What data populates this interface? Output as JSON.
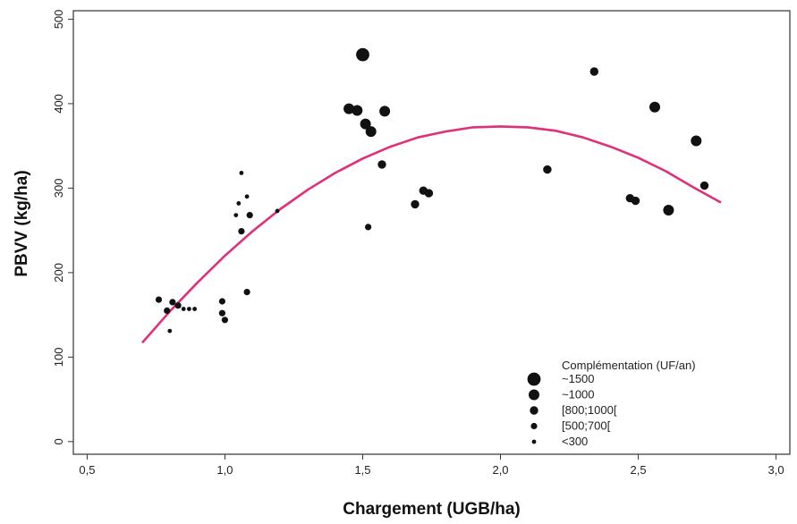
{
  "chart_data": {
    "type": "scatter",
    "xlabel": "Chargement (UGB/ha)",
    "ylabel": "PBVV (kg/ha)",
    "xlim": [
      0.45,
      3.05
    ],
    "ylim": [
      -15,
      510
    ],
    "x_ticks": [
      0.5,
      1.0,
      1.5,
      2.0,
      2.5,
      3.0
    ],
    "x_tick_labels": [
      "0,5",
      "1,0",
      "1,5",
      "2,0",
      "2,5",
      "3,0"
    ],
    "y_ticks": [
      0,
      100,
      200,
      300,
      400,
      500
    ],
    "y_tick_labels": [
      "0",
      "100",
      "200",
      "300",
      "400",
      "500"
    ],
    "grid": false,
    "colors": {
      "points": "#111111",
      "curve": "#e0307a",
      "axis": "#333333"
    },
    "legend": {
      "title": "Complémentation (UF/an)",
      "placement": "bottom-right",
      "entries": [
        {
          "label": "~1500",
          "size_class": 5
        },
        {
          "label": "~1000",
          "size_class": 4
        },
        {
          "label": "[800;1000[",
          "size_class": 3
        },
        {
          "label": "[500;700[",
          "size_class": 2
        },
        {
          "label": "<300",
          "size_class": 1
        }
      ]
    },
    "points": [
      {
        "x": 0.76,
        "y": 168,
        "size_class": 2
      },
      {
        "x": 0.79,
        "y": 155,
        "size_class": 2
      },
      {
        "x": 0.8,
        "y": 131,
        "size_class": 1
      },
      {
        "x": 0.81,
        "y": 165,
        "size_class": 2
      },
      {
        "x": 0.83,
        "y": 161,
        "size_class": 2
      },
      {
        "x": 0.85,
        "y": 157,
        "size_class": 1
      },
      {
        "x": 0.87,
        "y": 157,
        "size_class": 1
      },
      {
        "x": 0.89,
        "y": 157,
        "size_class": 1
      },
      {
        "x": 0.99,
        "y": 166,
        "size_class": 2
      },
      {
        "x": 0.99,
        "y": 152,
        "size_class": 2
      },
      {
        "x": 1.0,
        "y": 144,
        "size_class": 2
      },
      {
        "x": 1.04,
        "y": 268,
        "size_class": 1
      },
      {
        "x": 1.05,
        "y": 282,
        "size_class": 1
      },
      {
        "x": 1.06,
        "y": 318,
        "size_class": 1
      },
      {
        "x": 1.06,
        "y": 249,
        "size_class": 2
      },
      {
        "x": 1.08,
        "y": 290,
        "size_class": 1
      },
      {
        "x": 1.08,
        "y": 177,
        "size_class": 2
      },
      {
        "x": 1.09,
        "y": 268,
        "size_class": 2
      },
      {
        "x": 1.19,
        "y": 273,
        "size_class": 1
      },
      {
        "x": 1.45,
        "y": 394,
        "size_class": 4
      },
      {
        "x": 1.48,
        "y": 392,
        "size_class": 4
      },
      {
        "x": 1.5,
        "y": 458,
        "size_class": 5
      },
      {
        "x": 1.51,
        "y": 376,
        "size_class": 4
      },
      {
        "x": 1.52,
        "y": 254,
        "size_class": 2
      },
      {
        "x": 1.53,
        "y": 367,
        "size_class": 4
      },
      {
        "x": 1.57,
        "y": 328,
        "size_class": 3
      },
      {
        "x": 1.58,
        "y": 391,
        "size_class": 4
      },
      {
        "x": 1.69,
        "y": 281,
        "size_class": 3
      },
      {
        "x": 1.72,
        "y": 297,
        "size_class": 3
      },
      {
        "x": 1.74,
        "y": 294,
        "size_class": 3
      },
      {
        "x": 2.17,
        "y": 322,
        "size_class": 3
      },
      {
        "x": 2.34,
        "y": 438,
        "size_class": 3
      },
      {
        "x": 2.47,
        "y": 288,
        "size_class": 3
      },
      {
        "x": 2.49,
        "y": 285,
        "size_class": 3
      },
      {
        "x": 2.56,
        "y": 396,
        "size_class": 4
      },
      {
        "x": 2.61,
        "y": 274,
        "size_class": 4
      },
      {
        "x": 2.71,
        "y": 356,
        "size_class": 4
      },
      {
        "x": 2.74,
        "y": 303,
        "size_class": 3
      }
    ],
    "curve": {
      "x": [
        0.7,
        0.8,
        0.9,
        1.0,
        1.1,
        1.2,
        1.3,
        1.4,
        1.5,
        1.6,
        1.7,
        1.8,
        1.9,
        2.0,
        2.1,
        2.2,
        2.3,
        2.4,
        2.5,
        2.6,
        2.7,
        2.8
      ],
      "y": [
        117,
        154,
        188,
        220,
        249,
        275,
        298,
        318,
        335,
        349,
        360,
        367,
        372,
        373,
        372,
        368,
        360,
        349,
        336,
        320,
        301,
        283
      ]
    }
  }
}
